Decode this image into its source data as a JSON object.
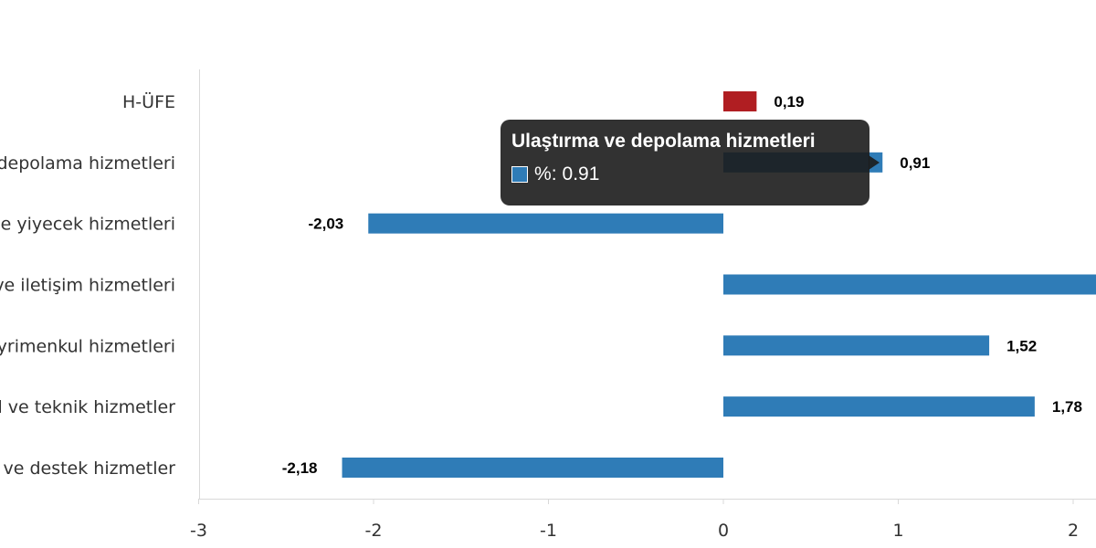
{
  "chart_data": {
    "type": "bar",
    "orientation": "horizontal",
    "categories": [
      "H-ÜFE",
      "Ulaştırma ve depolama hizmetleri",
      "Konaklama ve yiyecek hizmetleri",
      "Bilgi ve iletişim hizmetleri",
      "Gayrimenkul hizmetleri",
      "Mesleki, bilimsel ve teknik hizmetler",
      "İdari ve destek hizmetler"
    ],
    "values": [
      0.19,
      0.91,
      -2.03,
      2.14,
      1.52,
      1.78,
      -2.18
    ],
    "data_labels": [
      "0,19",
      "0,91",
      "-2,03",
      "",
      "1,52",
      "1,78",
      "-2,18"
    ],
    "bar_colors": [
      "#b01e22",
      "#2f7cb7",
      "#2f7cb7",
      "#2f7cb7",
      "#2f7cb7",
      "#2f7cb7",
      "#2f7cb7"
    ],
    "xlim": [
      -3,
      2.2
    ],
    "x_ticks": [
      -3,
      -2,
      -1,
      0,
      1,
      2
    ],
    "x_tick_labels": [
      "-3",
      "-2",
      "-1",
      "0",
      "1",
      "2"
    ],
    "grid": false,
    "legend": "none"
  },
  "tooltip": {
    "title": "Ulaştırma ve depolama hizmetleri",
    "series_label": "%",
    "value": "0.91",
    "swatch_color": "#2f7cb7"
  }
}
